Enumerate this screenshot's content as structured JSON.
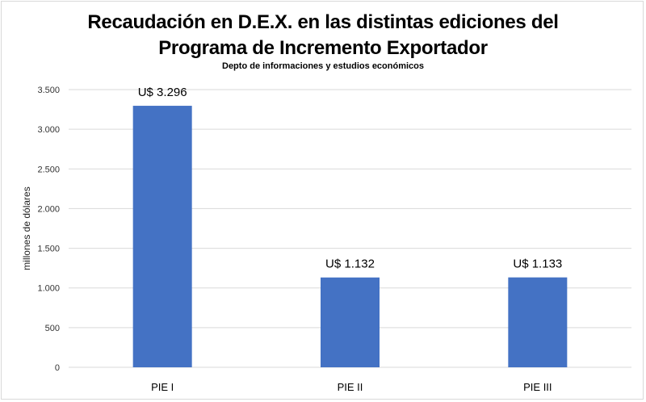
{
  "chart_data": {
    "type": "bar",
    "title_line1": "Recaudación en D.E.X. en las distintas ediciones del",
    "title_line2": "Programa de Incremento Exportador",
    "subtitle": "Depto de informaciones y estudios económicos",
    "xlabel": "",
    "ylabel": "millones de dólares",
    "categories": [
      "PIE I",
      "PIE II",
      "PIE III"
    ],
    "values": [
      3296,
      1132,
      1133
    ],
    "data_labels": [
      "U$ 3.296",
      "U$ 1.132",
      "U$ 1.133"
    ],
    "ylim": [
      0,
      3500
    ],
    "yticks": [
      0,
      500,
      1000,
      1500,
      2000,
      2500,
      3000,
      3500
    ],
    "ytick_labels": [
      "0",
      "500",
      "1.000",
      "1.500",
      "2.000",
      "2.500",
      "3.000",
      "3.500"
    ],
    "grid": true,
    "legend": "none",
    "bar_color": "#4472c4",
    "grid_color": "#d9d9d9"
  }
}
